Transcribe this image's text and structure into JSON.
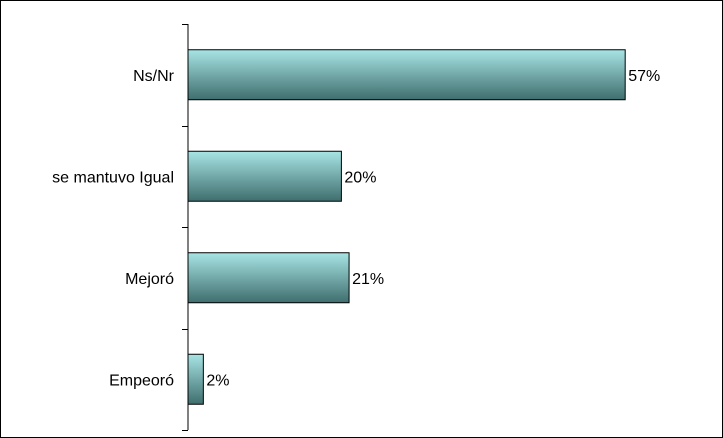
{
  "chart_data": {
    "type": "bar",
    "orientation": "horizontal",
    "categories": [
      "Ns/Nr",
      "se mantuvo Igual",
      "Mejoró",
      "Empeoró"
    ],
    "values": [
      57,
      20,
      21,
      2
    ],
    "value_labels": [
      "57%",
      "20%",
      "21%",
      "2%"
    ],
    "title": "",
    "xlabel": "",
    "ylabel": "",
    "xlim": [
      0,
      70
    ],
    "grid": false,
    "legend": "none",
    "bar_colors": {
      "top": "#a8e4e4",
      "bottom": "#3f6e6e",
      "outline": "#000000"
    }
  }
}
